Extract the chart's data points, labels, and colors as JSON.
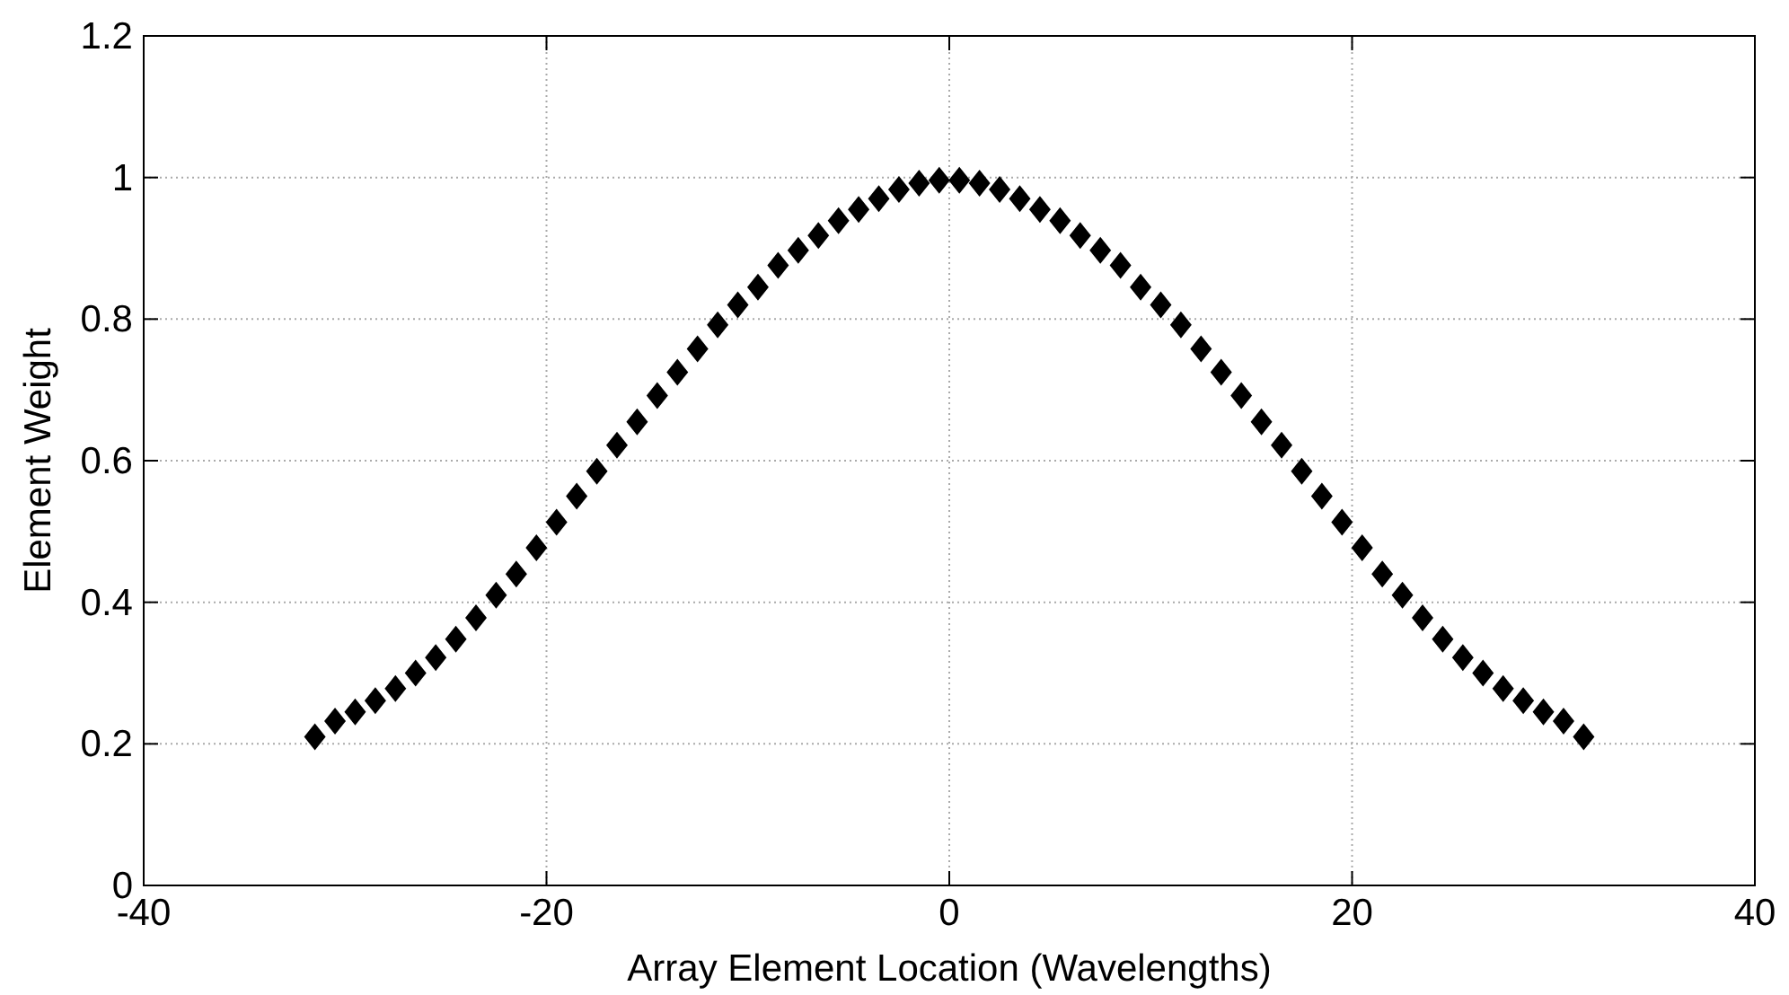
{
  "chart_data": {
    "type": "scatter",
    "xlabel": "Array Element Location (Wavelengths)",
    "ylabel": "Element Weight",
    "x": [
      -31.5,
      -30.5,
      -29.5,
      -28.5,
      -27.5,
      -26.5,
      -25.5,
      -24.5,
      -23.5,
      -22.5,
      -21.5,
      -20.5,
      -19.5,
      -18.5,
      -17.5,
      -16.5,
      -15.5,
      -14.5,
      -13.5,
      -12.5,
      -11.5,
      -10.5,
      -9.5,
      -8.5,
      -7.5,
      -6.5,
      -5.5,
      -4.5,
      -3.5,
      -2.5,
      -1.5,
      -0.5,
      0.5,
      1.5,
      2.5,
      3.5,
      4.5,
      5.5,
      6.5,
      7.5,
      8.5,
      9.5,
      10.5,
      11.5,
      12.5,
      13.5,
      14.5,
      15.5,
      16.5,
      17.5,
      18.5,
      19.5,
      20.5,
      21.5,
      22.5,
      23.5,
      24.5,
      25.5,
      26.5,
      27.5,
      28.5,
      29.5,
      30.5,
      31.5
    ],
    "series": [
      {
        "color": "#000000",
        "values": [
          0.21,
          0.232,
          0.245,
          0.261,
          0.278,
          0.3,
          0.322,
          0.348,
          0.378,
          0.41,
          0.44,
          0.477,
          0.513,
          0.55,
          0.585,
          0.622,
          0.655,
          0.692,
          0.725,
          0.758,
          0.792,
          0.82,
          0.845,
          0.876,
          0.897,
          0.918,
          0.939,
          0.955,
          0.97,
          0.983,
          0.992,
          0.996,
          0.996,
          0.992,
          0.983,
          0.97,
          0.955,
          0.939,
          0.918,
          0.897,
          0.876,
          0.845,
          0.82,
          0.792,
          0.758,
          0.725,
          0.692,
          0.655,
          0.622,
          0.585,
          0.55,
          0.513,
          0.477,
          0.44,
          0.41,
          0.378,
          0.348,
          0.322,
          0.3,
          0.278,
          0.261,
          0.245,
          0.232,
          0.21
        ]
      }
    ],
    "xlim": [
      -40,
      40
    ],
    "xticks": [
      -40,
      -20,
      0,
      20,
      40
    ],
    "ylim": [
      0,
      1.2
    ],
    "yticks": [
      0,
      0.2,
      0.4,
      0.6,
      0.8,
      1,
      1.2
    ],
    "grid": true,
    "marker": "diamond"
  }
}
